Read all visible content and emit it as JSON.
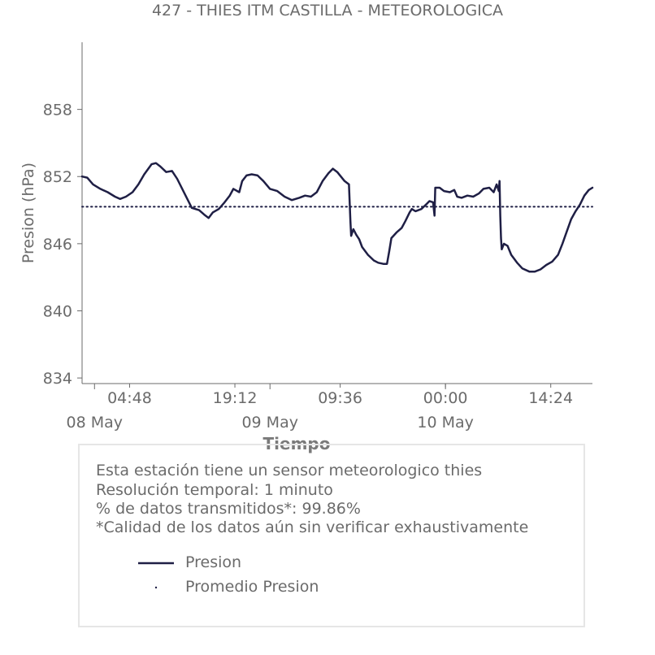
{
  "chart_data": {
    "type": "line",
    "title": "427 - THIES ITM CASTILLA - METEOROLOGICA",
    "xlabel": "Tiempo",
    "ylabel": "Presion (hPa)",
    "ylim": [
      833.5,
      864
    ],
    "yticks": [
      834,
      840,
      846,
      852,
      858
    ],
    "x_range_hours": [
      0,
      60
    ],
    "x_major_ticks": [
      {
        "x": 4.8,
        "label": "04:48"
      },
      {
        "x": 19.2,
        "label": "19:12"
      },
      {
        "x": 33.6,
        "label": "09:36"
      },
      {
        "x": 48.0,
        "label": "00:00"
      },
      {
        "x": 62.4,
        "label": "14:24"
      }
    ],
    "x_date_ticks": [
      {
        "x": 0,
        "label": "08 May"
      },
      {
        "x": 24,
        "label": "09 May"
      },
      {
        "x": 48,
        "label": "10 May"
      }
    ],
    "legend": {
      "placement": "bottom"
    },
    "grid": false,
    "series": [
      {
        "name": "Presion",
        "color": "#1f1f45",
        "style": "solid",
        "points": [
          [
            -1.7,
            852.0
          ],
          [
            -1.0,
            851.9
          ],
          [
            -0.2,
            851.3
          ],
          [
            0.8,
            850.9
          ],
          [
            1.8,
            850.6
          ],
          [
            2.8,
            850.2
          ],
          [
            3.5,
            850.0
          ],
          [
            4.3,
            850.2
          ],
          [
            5.2,
            850.6
          ],
          [
            6.0,
            851.3
          ],
          [
            6.8,
            852.2
          ],
          [
            7.8,
            853.1
          ],
          [
            8.4,
            853.2
          ],
          [
            9.0,
            852.9
          ],
          [
            9.8,
            852.4
          ],
          [
            10.6,
            852.5
          ],
          [
            11.3,
            851.8
          ],
          [
            12.3,
            850.5
          ],
          [
            13.3,
            849.2
          ],
          [
            14.3,
            849.0
          ],
          [
            15.0,
            848.6
          ],
          [
            15.6,
            848.3
          ],
          [
            16.2,
            848.8
          ],
          [
            17.0,
            849.1
          ],
          [
            17.8,
            849.7
          ],
          [
            18.5,
            850.3
          ],
          [
            19.0,
            850.9
          ],
          [
            19.8,
            850.6
          ],
          [
            20.2,
            851.6
          ],
          [
            20.8,
            852.1
          ],
          [
            21.5,
            852.2
          ],
          [
            22.3,
            852.1
          ],
          [
            23.1,
            851.6
          ],
          [
            24.0,
            850.9
          ],
          [
            25.0,
            850.7
          ],
          [
            26.0,
            850.2
          ],
          [
            27.0,
            849.9
          ],
          [
            28.0,
            850.1
          ],
          [
            28.8,
            850.3
          ],
          [
            29.6,
            850.2
          ],
          [
            30.4,
            850.6
          ],
          [
            31.2,
            851.6
          ],
          [
            32.0,
            852.3
          ],
          [
            32.6,
            852.7
          ],
          [
            33.2,
            852.4
          ],
          [
            34.2,
            851.6
          ],
          [
            34.8,
            851.3
          ],
          [
            35.0,
            848.0
          ],
          [
            35.1,
            846.7
          ],
          [
            35.4,
            847.3
          ],
          [
            35.8,
            846.8
          ],
          [
            36.2,
            846.4
          ],
          [
            36.6,
            845.7
          ],
          [
            37.4,
            845.0
          ],
          [
            38.2,
            844.5
          ],
          [
            38.8,
            844.3
          ],
          [
            39.5,
            844.2
          ],
          [
            40.0,
            844.2
          ],
          [
            40.3,
            845.3
          ],
          [
            40.6,
            846.5
          ],
          [
            41.3,
            847.0
          ],
          [
            42.0,
            847.4
          ],
          [
            42.5,
            848.0
          ],
          [
            43.1,
            848.8
          ],
          [
            43.4,
            849.1
          ],
          [
            43.9,
            848.9
          ],
          [
            44.7,
            849.1
          ],
          [
            45.5,
            849.6
          ],
          [
            45.8,
            849.8
          ],
          [
            46.3,
            849.7
          ],
          [
            46.5,
            848.5
          ],
          [
            46.6,
            851.0
          ],
          [
            47.2,
            851.0
          ],
          [
            47.8,
            850.7
          ],
          [
            48.6,
            850.6
          ],
          [
            49.2,
            850.8
          ],
          [
            49.6,
            850.2
          ],
          [
            50.2,
            850.1
          ],
          [
            51.0,
            850.3
          ],
          [
            51.8,
            850.2
          ],
          [
            52.6,
            850.5
          ],
          [
            53.2,
            850.9
          ],
          [
            54.0,
            851.0
          ],
          [
            54.6,
            850.6
          ],
          [
            55.0,
            851.3
          ],
          [
            55.3,
            850.7
          ],
          [
            55.4,
            851.6
          ],
          [
            55.5,
            848.5
          ],
          [
            55.6,
            846.5
          ],
          [
            55.7,
            845.5
          ],
          [
            56.0,
            846.0
          ],
          [
            56.5,
            845.8
          ],
          [
            57.0,
            845.0
          ],
          [
            57.8,
            844.3
          ],
          [
            58.5,
            843.8
          ],
          [
            59.5,
            843.5
          ],
          [
            60.2,
            843.5
          ],
          [
            61.0,
            843.7
          ],
          [
            61.8,
            844.1
          ],
          [
            62.6,
            844.4
          ],
          [
            63.4,
            845.0
          ],
          [
            64.0,
            846.0
          ],
          [
            64.6,
            847.1
          ],
          [
            65.2,
            848.2
          ],
          [
            65.8,
            848.9
          ],
          [
            66.4,
            849.5
          ],
          [
            67.0,
            850.3
          ],
          [
            67.6,
            850.8
          ],
          [
            68.1,
            851.0
          ]
        ]
      },
      {
        "name": "Promedio Presion",
        "color": "#1f1f45",
        "style": "dotted",
        "points": [
          [
            -1.7,
            849.3
          ],
          [
            68.1,
            849.3
          ]
        ]
      }
    ]
  },
  "info": {
    "lines": [
      "Esta estación tiene un sensor meteorologico thies",
      "Resolución temporal: 1 minuto",
      "% de datos transmitidos*: 99.86%",
      "*Calidad de los datos aún sin verificar exhaustivamente"
    ]
  }
}
